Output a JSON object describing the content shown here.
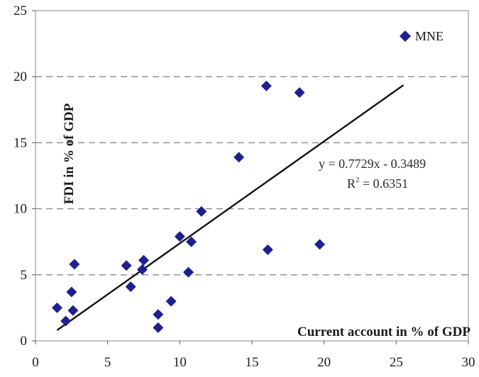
{
  "chart_data": {
    "type": "scatter",
    "xlabel": "Current account in % of GDP",
    "ylabel": "FDI in % of GDP",
    "xlim": [
      0,
      30
    ],
    "ylim": [
      0,
      25
    ],
    "xticks": [
      "0",
      "5",
      "10",
      "15",
      "20",
      "25",
      "30"
    ],
    "yticks": [
      "0",
      "5",
      "10",
      "15",
      "20",
      "25"
    ],
    "grid": "horizontal dashed",
    "legend_position": "top-right",
    "series": [
      {
        "name": "MNE",
        "marker": "diamond",
        "color": "#1f1f8f",
        "points": [
          [
            1.5,
            2.5
          ],
          [
            2.1,
            1.5
          ],
          [
            2.5,
            3.7
          ],
          [
            2.6,
            2.3
          ],
          [
            2.7,
            5.8
          ],
          [
            6.3,
            5.7
          ],
          [
            6.6,
            4.1
          ],
          [
            7.4,
            5.4
          ],
          [
            7.5,
            6.1
          ],
          [
            8.5,
            2.0
          ],
          [
            8.5,
            1.0
          ],
          [
            9.4,
            3.0
          ],
          [
            10.0,
            7.9
          ],
          [
            10.6,
            5.2
          ],
          [
            10.8,
            7.5
          ],
          [
            11.5,
            9.8
          ],
          [
            14.1,
            13.9
          ],
          [
            16.0,
            19.3
          ],
          [
            16.1,
            6.9
          ],
          [
            18.3,
            18.8
          ],
          [
            19.7,
            7.3
          ]
        ]
      }
    ],
    "trendline": {
      "slope": 0.7729,
      "intercept": -0.3489,
      "x_range": [
        1.5,
        25.5
      ],
      "equation_text": "y = 0.7729x - 0.3489",
      "r2_prefix": "R",
      "r2_exp": "2",
      "r2_suffix": " = 0.6351"
    }
  }
}
